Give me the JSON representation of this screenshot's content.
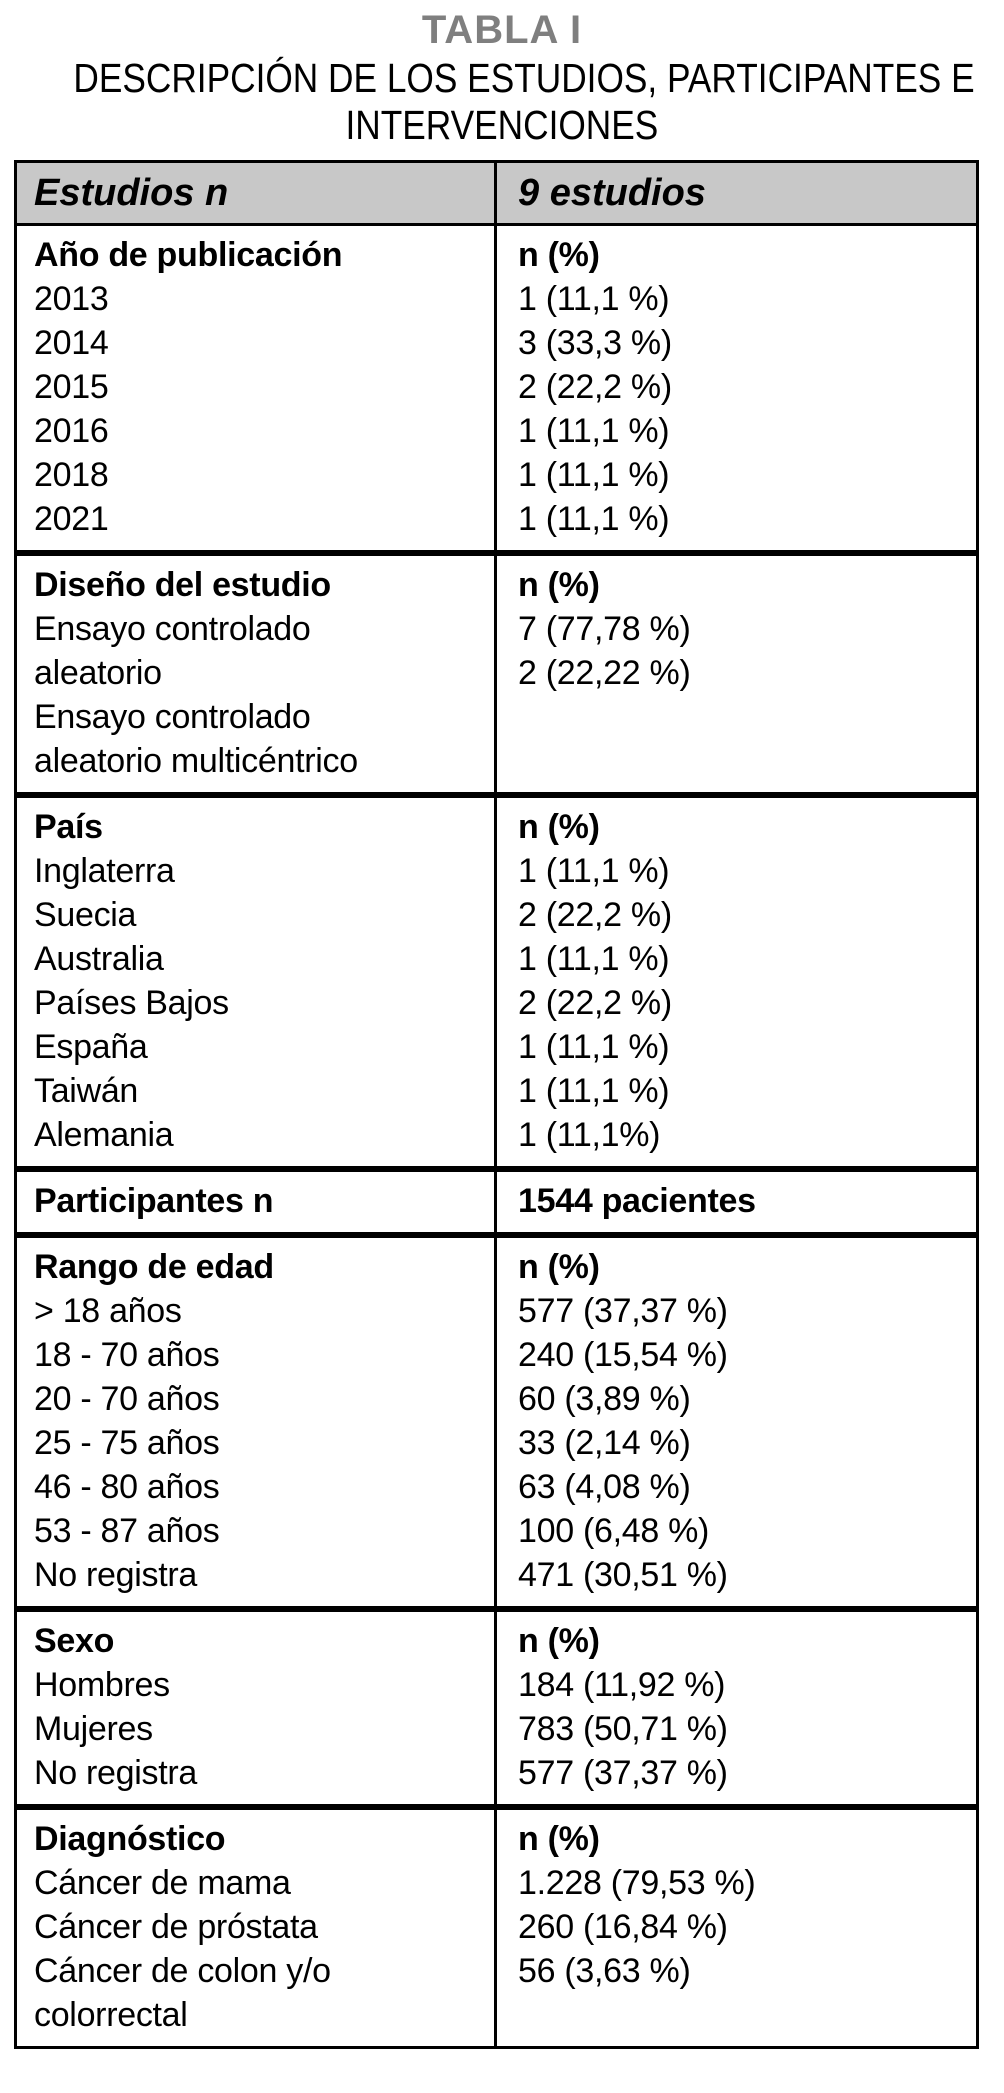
{
  "page": {
    "title": "TABLA I",
    "subtitle_line1": "DESCRIPCIÓN DE LOS ESTUDIOS, PARTICIPANTES E",
    "subtitle_line2": "INTERVENCIONES"
  },
  "colors": {
    "header_bg": "#c8c8c8",
    "title_gray": "#7f7f7f",
    "border": "#000000",
    "text": "#000000"
  },
  "table": {
    "header": {
      "left": "Estudios n",
      "right": "9 estudios"
    },
    "sections": [
      {
        "name": "ano-de-publicacion",
        "left": [
          {
            "text": "Año de publicación",
            "bold": true
          },
          {
            "text": "2013"
          },
          {
            "text": "2014"
          },
          {
            "text": "2015"
          },
          {
            "text": "2016"
          },
          {
            "text": "2018"
          },
          {
            "text": "2021"
          }
        ],
        "right": [
          {
            "text": "n (%)",
            "bold": true
          },
          {
            "text": "1 (11,1 %)"
          },
          {
            "text": "3 (33,3 %)"
          },
          {
            "text": "2 (22,2 %)"
          },
          {
            "text": "1 (11,1 %)"
          },
          {
            "text": "1 (11,1 %)"
          },
          {
            "text": "1 (11,1 %)"
          }
        ]
      },
      {
        "name": "diseno-del-estudio",
        "left": [
          {
            "text": "Diseño del estudio",
            "bold": true
          },
          {
            "text": "Ensayo controlado"
          },
          {
            "text": "aleatorio"
          },
          {
            "text": "Ensayo controlado"
          },
          {
            "text": "aleatorio multicéntrico"
          }
        ],
        "right": [
          {
            "text": "n (%)",
            "bold": true
          },
          {
            "text": "7 (77,78 %)"
          },
          {
            "text": "2 (22,22 %)"
          }
        ]
      },
      {
        "name": "pais",
        "left": [
          {
            "text": "País",
            "bold": true
          },
          {
            "text": "Inglaterra"
          },
          {
            "text": "Suecia"
          },
          {
            "text": "Australia"
          },
          {
            "text": "Países Bajos"
          },
          {
            "text": "España"
          },
          {
            "text": "Taiwán"
          },
          {
            "text": "Alemania"
          }
        ],
        "right": [
          {
            "text": "n (%)",
            "bold": true
          },
          {
            "text": "1 (11,1 %)"
          },
          {
            "text": "2 (22,2 %)"
          },
          {
            "text": "1 (11,1 %)"
          },
          {
            "text": "2 (22,2 %)"
          },
          {
            "text": "1 (11,1 %)"
          },
          {
            "text": "1 (11,1 %)"
          },
          {
            "text": "1 (11,1%)"
          }
        ]
      },
      {
        "name": "participantes",
        "left": [
          {
            "text": "Participantes n",
            "bold": true
          }
        ],
        "right": [
          {
            "text": "1544 pacientes",
            "bold": true
          }
        ]
      },
      {
        "name": "rango-de-edad",
        "left": [
          {
            "text": "Rango de edad",
            "bold": true
          },
          {
            "text": "> 18 años"
          },
          {
            "text": "18 - 70 años"
          },
          {
            "text": "20 - 70 años"
          },
          {
            "text": "25 - 75 años"
          },
          {
            "text": "46 - 80 años"
          },
          {
            "text": "53 - 87 años"
          },
          {
            "text": "No registra"
          }
        ],
        "right": [
          {
            "text": "n (%)",
            "bold": true
          },
          {
            "text": "577 (37,37 %)"
          },
          {
            "text": "240 (15,54 %)"
          },
          {
            "text": "60 (3,89 %)"
          },
          {
            "text": "33 (2,14 %)"
          },
          {
            "text": "63 (4,08 %)"
          },
          {
            "text": "100 (6,48 %)"
          },
          {
            "text": "471 (30,51 %)"
          }
        ]
      },
      {
        "name": "sexo",
        "left": [
          {
            "text": "Sexo",
            "bold": true
          },
          {
            "text": "Hombres"
          },
          {
            "text": "Mujeres"
          },
          {
            "text": "No registra"
          }
        ],
        "right": [
          {
            "text": "n (%)",
            "bold": true
          },
          {
            "text": "184 (11,92 %)"
          },
          {
            "text": "783 (50,71 %)"
          },
          {
            "text": "577 (37,37 %)"
          }
        ]
      },
      {
        "name": "diagnostico",
        "left": [
          {
            "text": "Diagnóstico",
            "bold": true
          },
          {
            "text": "Cáncer de mama"
          },
          {
            "text": "Cáncer de próstata"
          },
          {
            "text": "Cáncer de colon y/o"
          },
          {
            "text": "colorrectal"
          }
        ],
        "right": [
          {
            "text": "n (%)",
            "bold": true
          },
          {
            "text": "1.228 (79,53 %)"
          },
          {
            "text": "260 (16,84 %)"
          },
          {
            "text": "56 (3,63 %)"
          }
        ]
      }
    ]
  }
}
